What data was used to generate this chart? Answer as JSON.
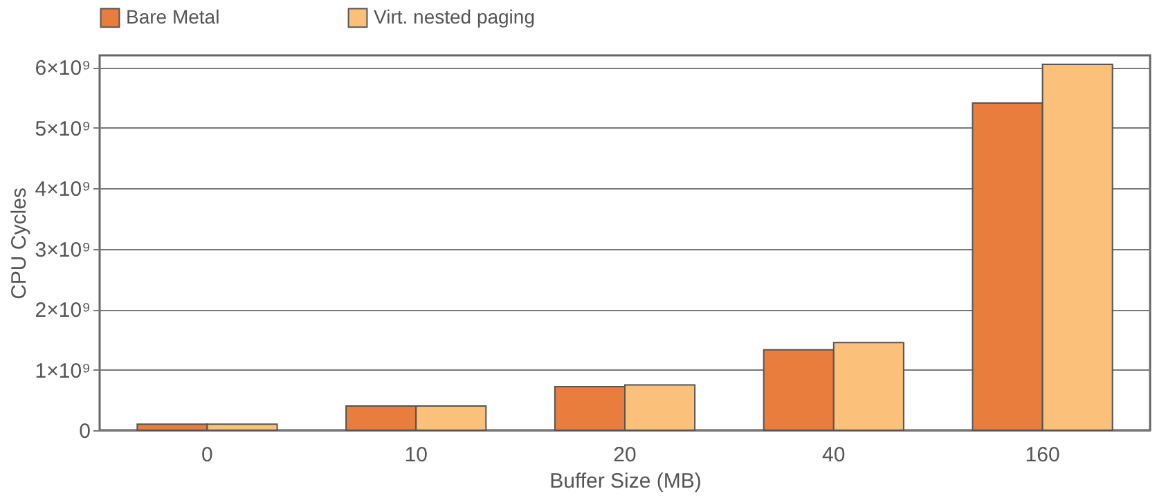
{
  "chart_data": {
    "type": "bar",
    "xlabel": "Buffer Size (MB)",
    "ylabel": "CPU Cycles",
    "categories": [
      "0",
      "10",
      "20",
      "40",
      "160"
    ],
    "series": [
      {
        "name": "Bare Metal",
        "color": "#e87d3e",
        "values": [
          100000000.0,
          400000000.0,
          720000000.0,
          1330000000.0,
          5410000000.0
        ]
      },
      {
        "name": "Virt. nested paging",
        "color": "#fbc07a",
        "values": [
          100000000.0,
          400000000.0,
          750000000.0,
          1450000000.0,
          6050000000.0
        ]
      }
    ],
    "ylim": [
      0,
      6200000000.0
    ],
    "yticks": [
      0,
      {
        "value": 1000000000.0,
        "label": "1×10⁹"
      },
      {
        "value": 2000000000.0,
        "label": "2×10⁹"
      },
      {
        "value": 3000000000.0,
        "label": "3×10⁹"
      },
      {
        "value": 4000000000.0,
        "label": "4×10⁹"
      },
      {
        "value": 5000000000.0,
        "label": "5×10⁹"
      },
      {
        "value": 6000000000.0,
        "label": "6×10⁹"
      }
    ],
    "grid": "y",
    "legend": "top"
  }
}
